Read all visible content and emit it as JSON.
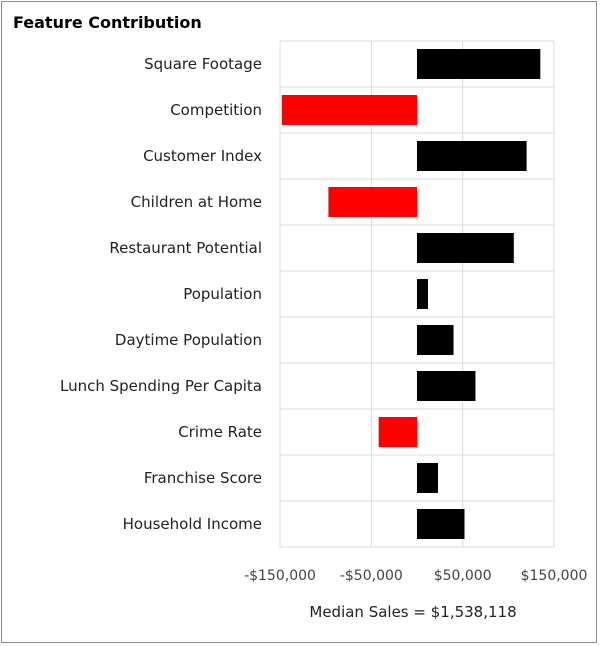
{
  "colors": {
    "positive": "#000000",
    "negative": "#ff0000",
    "grid": "#dcdcdc",
    "label": "#222222",
    "tick": "#444444"
  },
  "chart_data": {
    "type": "bar",
    "orientation": "horizontal",
    "title": "Feature Contribution",
    "categories": [
      "Square Footage",
      "Competition",
      "Customer Index",
      "Children at Home",
      "Restaurant Potential",
      "Population",
      "Daytime Population",
      "Lunch Spending Per Capita",
      "Crime Rate",
      "Franchise Score",
      "Household Income"
    ],
    "values": [
      135000,
      -148000,
      120000,
      -97000,
      106000,
      12000,
      40000,
      64000,
      -42000,
      23000,
      52000
    ],
    "xlim": [
      -150000,
      150000
    ],
    "xticks": [
      -150000,
      -50000,
      50000,
      150000
    ],
    "xtick_labels": [
      "-$150,000",
      "-$50,000",
      "$50,000",
      "$150,000"
    ],
    "grid": true,
    "legend": "none",
    "footer": "Median Sales = $1,538,118"
  }
}
